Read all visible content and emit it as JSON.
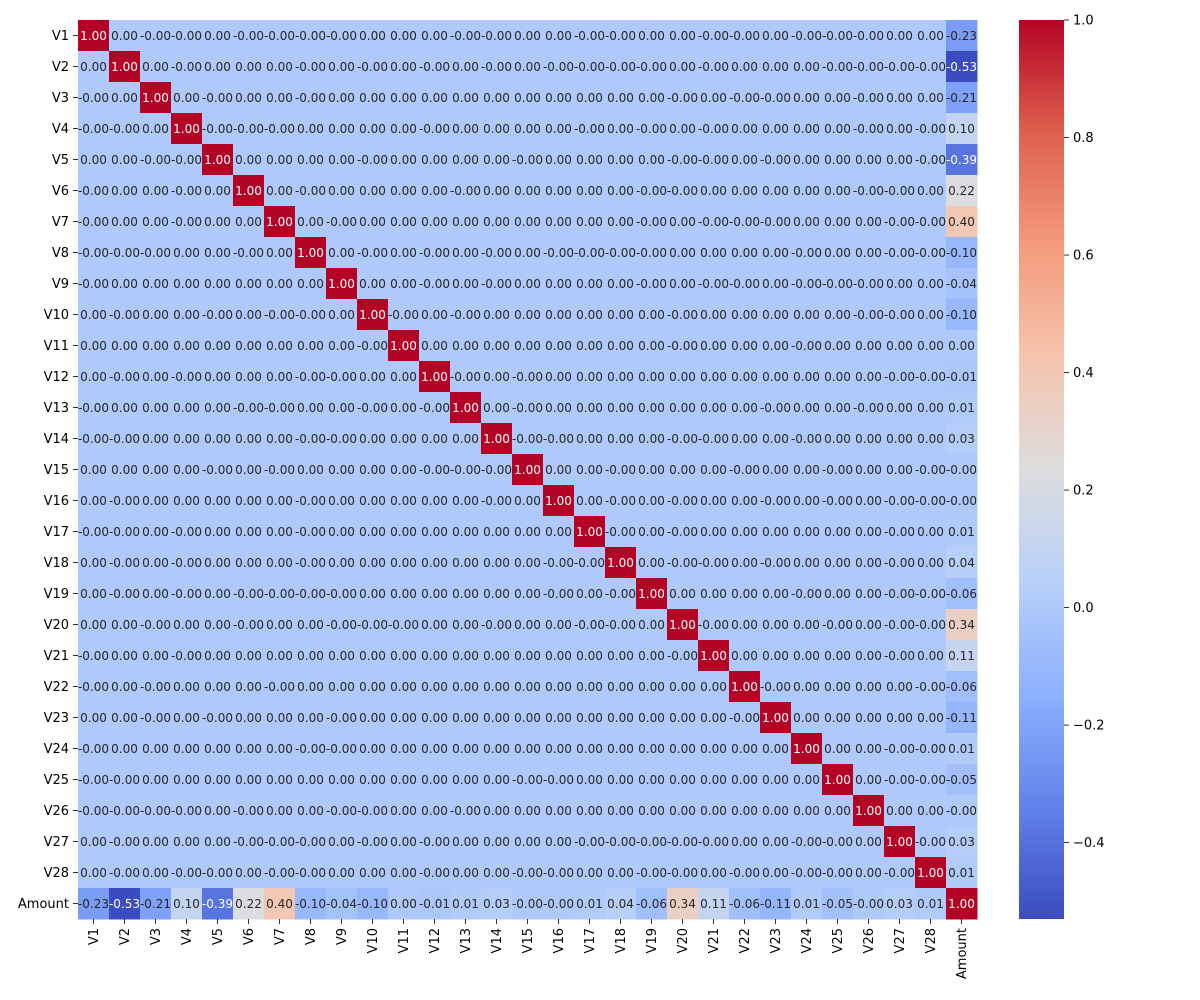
{
  "chart_data": {
    "type": "heatmap",
    "title": "",
    "xlabel": "",
    "ylabel": "",
    "labels": [
      "V1",
      "V2",
      "V3",
      "V4",
      "V5",
      "V6",
      "V7",
      "V8",
      "V9",
      "V10",
      "V11",
      "V12",
      "V13",
      "V14",
      "V15",
      "V16",
      "V17",
      "V18",
      "V19",
      "V20",
      "V21",
      "V22",
      "V23",
      "V24",
      "V25",
      "V26",
      "V27",
      "V28",
      "Amount"
    ],
    "amount_correlations": [
      -0.23,
      -0.53,
      -0.21,
      0.1,
      -0.39,
      0.22,
      0.4,
      -0.1,
      -0.04,
      -0.1,
      0.0,
      -0.01,
      0.01,
      0.03,
      -0.0,
      -0.0,
      0.01,
      0.04,
      -0.06,
      0.34,
      0.11,
      -0.06,
      -0.11,
      0.01,
      -0.05,
      -0.0,
      0.03,
      0.01,
      1.0
    ],
    "off_diagonal_text": [
      [
        "1.00",
        "0.00",
        "-0.00",
        "-0.00",
        "0.00",
        "-0.00",
        "-0.00",
        "-0.00",
        "-0.00",
        "0.00",
        "0.00",
        "0.00",
        "-0.00",
        "-0.00",
        "0.00",
        "0.00",
        "-0.00",
        "-0.00",
        "0.00",
        "0.00",
        "-0.00",
        "-0.00",
        "0.00",
        "-0.00",
        "-0.00",
        "-0.00",
        "0.00",
        "0.00",
        "-0.23"
      ],
      [
        "0.00",
        "1.00",
        "0.00",
        "-0.00",
        "0.00",
        "0.00",
        "0.00",
        "-0.00",
        "0.00",
        "-0.00",
        "0.00",
        "-0.00",
        "0.00",
        "-0.00",
        "0.00",
        "-0.00",
        "-0.00",
        "-0.00",
        "-0.00",
        "0.00",
        "-0.00",
        "0.00",
        "0.00",
        "0.00",
        "-0.00",
        "-0.00",
        "-0.00",
        "-0.00",
        "-0.53"
      ],
      [
        "-0.00",
        "0.00",
        "1.00",
        "0.00",
        "-0.00",
        "0.00",
        "0.00",
        "-0.00",
        "0.00",
        "0.00",
        "0.00",
        "0.00",
        "0.00",
        "0.00",
        "0.00",
        "0.00",
        "0.00",
        "0.00",
        "0.00",
        "-0.00",
        "0.00",
        "-0.00",
        "-0.00",
        "0.00",
        "0.00",
        "-0.00",
        "0.00",
        "0.00",
        "-0.21"
      ],
      [
        "-0.00",
        "-0.00",
        "0.00",
        "1.00",
        "-0.00",
        "-0.00",
        "-0.00",
        "0.00",
        "0.00",
        "0.00",
        "0.00",
        "-0.00",
        "0.00",
        "0.00",
        "0.00",
        "0.00",
        "-0.00",
        "0.00",
        "-0.00",
        "0.00",
        "-0.00",
        "0.00",
        "0.00",
        "0.00",
        "0.00",
        "-0.00",
        "0.00",
        "-0.00",
        "0.10"
      ],
      [
        "0.00",
        "0.00",
        "-0.00",
        "-0.00",
        "1.00",
        "0.00",
        "0.00",
        "0.00",
        "0.00",
        "-0.00",
        "0.00",
        "0.00",
        "0.00",
        "0.00",
        "-0.00",
        "0.00",
        "0.00",
        "0.00",
        "0.00",
        "-0.00",
        "-0.00",
        "0.00",
        "-0.00",
        "0.00",
        "0.00",
        "0.00",
        "0.00",
        "-0.00",
        "-0.39"
      ],
      [
        "-0.00",
        "0.00",
        "0.00",
        "-0.00",
        "0.00",
        "1.00",
        "0.00",
        "-0.00",
        "0.00",
        "0.00",
        "0.00",
        "0.00",
        "-0.00",
        "0.00",
        "0.00",
        "0.00",
        "0.00",
        "0.00",
        "-0.00",
        "-0.00",
        "0.00",
        "0.00",
        "0.00",
        "0.00",
        "0.00",
        "-0.00",
        "-0.00",
        "0.00",
        "0.22"
      ],
      [
        "-0.00",
        "0.00",
        "0.00",
        "-0.00",
        "0.00",
        "0.00",
        "1.00",
        "0.00",
        "-0.00",
        "0.00",
        "0.00",
        "0.00",
        "0.00",
        "0.00",
        "0.00",
        "0.00",
        "0.00",
        "0.00",
        "-0.00",
        "0.00",
        "-0.00",
        "-0.00",
        "-0.00",
        "0.00",
        "0.00",
        "0.00",
        "-0.00",
        "-0.00",
        "0.40"
      ],
      [
        "-0.00",
        "-0.00",
        "-0.00",
        "0.00",
        "0.00",
        "-0.00",
        "0.00",
        "1.00",
        "0.00",
        "-0.00",
        "0.00",
        "-0.00",
        "0.00",
        "-0.00",
        "0.00",
        "-0.00",
        "-0.00",
        "-0.00",
        "-0.00",
        "0.00",
        "0.00",
        "0.00",
        "0.00",
        "-0.00",
        "0.00",
        "0.00",
        "-0.00",
        "-0.00",
        "-0.10"
      ],
      [
        "-0.00",
        "0.00",
        "0.00",
        "0.00",
        "0.00",
        "0.00",
        "0.00",
        "0.00",
        "1.00",
        "0.00",
        "0.00",
        "-0.00",
        "0.00",
        "-0.00",
        "0.00",
        "0.00",
        "0.00",
        "0.00",
        "-0.00",
        "0.00",
        "-0.00",
        "-0.00",
        "0.00",
        "-0.00",
        "-0.00",
        "-0.00",
        "0.00",
        "0.00",
        "-0.04"
      ],
      [
        "0.00",
        "-0.00",
        "0.00",
        "0.00",
        "-0.00",
        "0.00",
        "-0.00",
        "-0.00",
        "0.00",
        "1.00",
        "-0.00",
        "0.00",
        "-0.00",
        "0.00",
        "0.00",
        "0.00",
        "0.00",
        "0.00",
        "0.00",
        "-0.00",
        "0.00",
        "0.00",
        "0.00",
        "0.00",
        "0.00",
        "-0.00",
        "-0.00",
        "0.00",
        "-0.10"
      ],
      [
        "0.00",
        "0.00",
        "0.00",
        "0.00",
        "0.00",
        "0.00",
        "0.00",
        "0.00",
        "0.00",
        "-0.00",
        "1.00",
        "0.00",
        "0.00",
        "0.00",
        "0.00",
        "0.00",
        "0.00",
        "0.00",
        "0.00",
        "-0.00",
        "0.00",
        "0.00",
        "0.00",
        "-0.00",
        "0.00",
        "0.00",
        "0.00",
        "0.00",
        "0.00"
      ],
      [
        "0.00",
        "-0.00",
        "0.00",
        "-0.00",
        "0.00",
        "0.00",
        "0.00",
        "-0.00",
        "-0.00",
        "0.00",
        "0.00",
        "1.00",
        "-0.00",
        "0.00",
        "-0.00",
        "0.00",
        "0.00",
        "0.00",
        "0.00",
        "0.00",
        "0.00",
        "0.00",
        "0.00",
        "0.00",
        "0.00",
        "0.00",
        "-0.00",
        "-0.00",
        "-0.01"
      ],
      [
        "-0.00",
        "0.00",
        "0.00",
        "0.00",
        "0.00",
        "-0.00",
        "-0.00",
        "0.00",
        "0.00",
        "-0.00",
        "0.00",
        "-0.00",
        "1.00",
        "0.00",
        "-0.00",
        "0.00",
        "0.00",
        "0.00",
        "0.00",
        "0.00",
        "0.00",
        "0.00",
        "-0.00",
        "0.00",
        "0.00",
        "-0.00",
        "0.00",
        "0.00",
        "0.01"
      ],
      [
        "-0.00",
        "-0.00",
        "0.00",
        "0.00",
        "0.00",
        "0.00",
        "0.00",
        "-0.00",
        "-0.00",
        "0.00",
        "0.00",
        "0.00",
        "0.00",
        "1.00",
        "-0.00",
        "-0.00",
        "0.00",
        "0.00",
        "0.00",
        "-0.00",
        "-0.00",
        "0.00",
        "0.00",
        "-0.00",
        "0.00",
        "0.00",
        "0.00",
        "0.00",
        "0.03"
      ],
      [
        "0.00",
        "0.00",
        "0.00",
        "0.00",
        "-0.00",
        "0.00",
        "-0.00",
        "0.00",
        "0.00",
        "0.00",
        "0.00",
        "-0.00",
        "-0.00",
        "-0.00",
        "1.00",
        "0.00",
        "0.00",
        "-0.00",
        "0.00",
        "0.00",
        "0.00",
        "-0.00",
        "0.00",
        "0.00",
        "-0.00",
        "0.00",
        "0.00",
        "-0.00",
        "-0.00"
      ],
      [
        "0.00",
        "-0.00",
        "0.00",
        "0.00",
        "0.00",
        "0.00",
        "0.00",
        "-0.00",
        "0.00",
        "0.00",
        "0.00",
        "0.00",
        "0.00",
        "-0.00",
        "0.00",
        "1.00",
        "0.00",
        "-0.00",
        "0.00",
        "-0.00",
        "0.00",
        "0.00",
        "-0.00",
        "0.00",
        "-0.00",
        "0.00",
        "-0.00",
        "-0.00",
        "-0.00"
      ],
      [
        "-0.00",
        "-0.00",
        "0.00",
        "-0.00",
        "0.00",
        "0.00",
        "0.00",
        "-0.00",
        "0.00",
        "0.00",
        "0.00",
        "0.00",
        "0.00",
        "0.00",
        "0.00",
        "0.00",
        "1.00",
        "-0.00",
        "0.00",
        "-0.00",
        "0.00",
        "0.00",
        "0.00",
        "0.00",
        "0.00",
        "0.00",
        "-0.00",
        "0.00",
        "0.01"
      ],
      [
        "0.00",
        "-0.00",
        "0.00",
        "-0.00",
        "0.00",
        "0.00",
        "0.00",
        "-0.00",
        "0.00",
        "0.00",
        "0.00",
        "0.00",
        "0.00",
        "0.00",
        "0.00",
        "-0.00",
        "-0.00",
        "1.00",
        "0.00",
        "-0.00",
        "-0.00",
        "0.00",
        "-0.00",
        "0.00",
        "0.00",
        "0.00",
        "-0.00",
        "0.00",
        "0.04"
      ],
      [
        "0.00",
        "-0.00",
        "0.00",
        "-0.00",
        "0.00",
        "-0.00",
        "-0.00",
        "-0.00",
        "-0.00",
        "0.00",
        "0.00",
        "0.00",
        "0.00",
        "0.00",
        "0.00",
        "-0.00",
        "0.00",
        "-0.00",
        "1.00",
        "0.00",
        "0.00",
        "0.00",
        "0.00",
        "-0.00",
        "0.00",
        "0.00",
        "-0.00",
        "-0.00",
        "-0.06"
      ],
      [
        "0.00",
        "0.00",
        "-0.00",
        "0.00",
        "0.00",
        "-0.00",
        "0.00",
        "0.00",
        "-0.00",
        "-0.00",
        "-0.00",
        "0.00",
        "0.00",
        "-0.00",
        "0.00",
        "0.00",
        "-0.00",
        "-0.00",
        "0.00",
        "1.00",
        "-0.00",
        "0.00",
        "0.00",
        "0.00",
        "-0.00",
        "0.00",
        "-0.00",
        "-0.00",
        "0.34"
      ],
      [
        "-0.00",
        "0.00",
        "0.00",
        "-0.00",
        "0.00",
        "0.00",
        "0.00",
        "0.00",
        "0.00",
        "0.00",
        "0.00",
        "0.00",
        "0.00",
        "0.00",
        "0.00",
        "0.00",
        "0.00",
        "0.00",
        "0.00",
        "-0.00",
        "1.00",
        "0.00",
        "0.00",
        "0.00",
        "0.00",
        "0.00",
        "-0.00",
        "0.00",
        "0.11"
      ],
      [
        "-0.00",
        "0.00",
        "-0.00",
        "0.00",
        "0.00",
        "0.00",
        "-0.00",
        "0.00",
        "0.00",
        "0.00",
        "0.00",
        "0.00",
        "0.00",
        "0.00",
        "0.00",
        "0.00",
        "0.00",
        "0.00",
        "0.00",
        "0.00",
        "0.00",
        "1.00",
        "-0.00",
        "0.00",
        "0.00",
        "0.00",
        "0.00",
        "-0.00",
        "-0.06"
      ],
      [
        "0.00",
        "0.00",
        "-0.00",
        "0.00",
        "-0.00",
        "0.00",
        "0.00",
        "0.00",
        "-0.00",
        "0.00",
        "0.00",
        "0.00",
        "0.00",
        "0.00",
        "0.00",
        "0.00",
        "0.00",
        "0.00",
        "0.00",
        "0.00",
        "0.00",
        "-0.00",
        "1.00",
        "0.00",
        "0.00",
        "0.00",
        "0.00",
        "0.00",
        "-0.11"
      ],
      [
        "-0.00",
        "0.00",
        "0.00",
        "0.00",
        "0.00",
        "0.00",
        "0.00",
        "-0.00",
        "-0.00",
        "0.00",
        "0.00",
        "0.00",
        "0.00",
        "0.00",
        "0.00",
        "0.00",
        "0.00",
        "0.00",
        "0.00",
        "0.00",
        "0.00",
        "0.00",
        "0.00",
        "1.00",
        "0.00",
        "0.00",
        "-0.00",
        "-0.00",
        "0.01"
      ],
      [
        "-0.00",
        "-0.00",
        "0.00",
        "0.00",
        "0.00",
        "0.00",
        "0.00",
        "0.00",
        "0.00",
        "0.00",
        "0.00",
        "0.00",
        "0.00",
        "0.00",
        "-0.00",
        "-0.00",
        "0.00",
        "0.00",
        "0.00",
        "0.00",
        "0.00",
        "0.00",
        "0.00",
        "0.00",
        "1.00",
        "0.00",
        "-0.00",
        "-0.00",
        "-0.05"
      ],
      [
        "-0.00",
        "-0.00",
        "-0.00",
        "-0.00",
        "0.00",
        "-0.00",
        "0.00",
        "0.00",
        "-0.00",
        "-0.00",
        "0.00",
        "0.00",
        "-0.00",
        "0.00",
        "0.00",
        "0.00",
        "0.00",
        "0.00",
        "0.00",
        "0.00",
        "0.00",
        "0.00",
        "0.00",
        "0.00",
        "0.00",
        "1.00",
        "0.00",
        "0.00",
        "-0.00"
      ],
      [
        "0.00",
        "-0.00",
        "0.00",
        "0.00",
        "0.00",
        "-0.00",
        "-0.00",
        "-0.00",
        "0.00",
        "-0.00",
        "0.00",
        "-0.00",
        "0.00",
        "0.00",
        "0.00",
        "0.00",
        "-0.00",
        "-0.00",
        "-0.00",
        "-0.00",
        "-0.00",
        "0.00",
        "0.00",
        "-0.00",
        "-0.00",
        "0.00",
        "1.00",
        "-0.00",
        "0.03"
      ],
      [
        "0.00",
        "-0.00",
        "0.00",
        "-0.00",
        "-0.00",
        "0.00",
        "-0.00",
        "-0.00",
        "0.00",
        "0.00",
        "0.00",
        "-0.00",
        "0.00",
        "0.00",
        "-0.00",
        "-0.00",
        "0.00",
        "0.00",
        "-0.00",
        "-0.00",
        "0.00",
        "-0.00",
        "0.00",
        "-0.00",
        "-0.00",
        "0.00",
        "-0.00",
        "1.00",
        "0.01"
      ],
      [
        "-0.23",
        "-0.53",
        "-0.21",
        "0.10",
        "-0.39",
        "0.22",
        "0.40",
        "-0.10",
        "-0.04",
        "-0.10",
        "0.00",
        "-0.01",
        "0.01",
        "0.03",
        "-0.00",
        "-0.00",
        "0.01",
        "0.04",
        "-0.06",
        "0.34",
        "0.11",
        "-0.06",
        "-0.11",
        "0.01",
        "-0.05",
        "-0.00",
        "0.03",
        "0.01",
        "1.00"
      ]
    ],
    "colormap": "coolwarm",
    "vmin": -0.53,
    "vmax": 1.0,
    "colorbar_ticks": [
      "−0.4",
      "−0.2",
      "0.0",
      "0.2",
      "0.4",
      "0.6",
      "0.8",
      "1.0"
    ],
    "colorbar_tick_values": [
      -0.4,
      -0.2,
      0.0,
      0.2,
      0.4,
      0.6,
      0.8,
      1.0
    ],
    "grid": false,
    "legend": "colorbar-right"
  }
}
